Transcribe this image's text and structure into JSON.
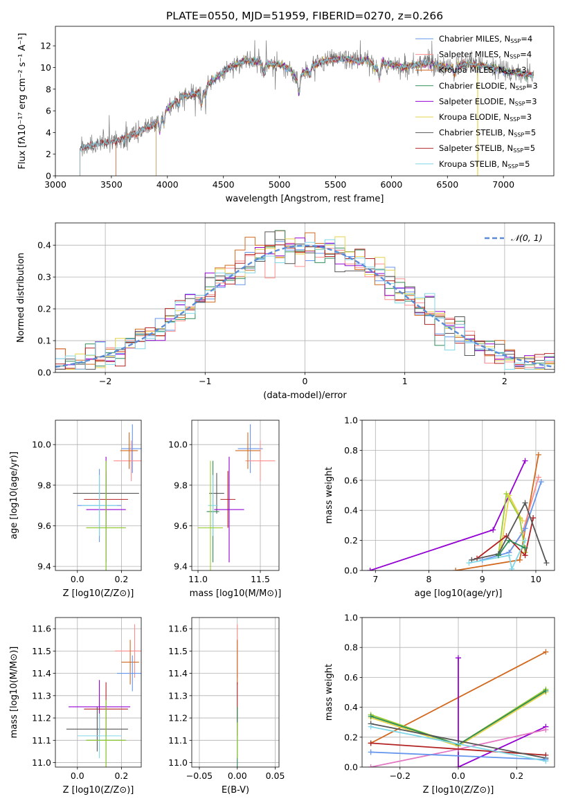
{
  "colors": {
    "chabrier_miles": "#6495ed",
    "salpeter_miles": "#ff8c8c",
    "kroupa_miles": "#d2691e",
    "chabrier_elodie": "#2e8b57",
    "salpeter_elodie": "#9400d3",
    "kroupa_elodie": "#e6d44a",
    "chabrier_stelib": "#555555",
    "salpeter_stelib": "#b22222",
    "kroupa_stelib": "#7fd6e6",
    "gaussian": "#5b8bd6",
    "extra_pink": "#e377c2",
    "extra_lime": "#9acd32"
  },
  "chart_data": [
    {
      "type": "line",
      "title": "PLATE=0550, MJD=51959, FIBERID=0270, z=0.266",
      "xlabel": "wavelength [Angstrom, rest frame]",
      "ylabel": "Flux [fλ10⁻¹⁷ erg cm⁻² s⁻¹ A⁻¹]",
      "xlim": [
        3000,
        7450
      ],
      "ylim": [
        0,
        13.8
      ],
      "xticks": [
        3000,
        3500,
        4000,
        4500,
        5000,
        5500,
        6000,
        6500,
        7000
      ],
      "yticks": [
        0,
        2,
        4,
        6,
        8,
        10,
        12
      ],
      "grid": false,
      "legend_position": "top-right",
      "series": [
        {
          "name": "Chabrier MILES, N_SSP=4",
          "color_key": "chabrier_miles",
          "start": 3540
        },
        {
          "name": "Salpeter MILES, N_SSP=4",
          "color_key": "salpeter_miles",
          "start": 3540
        },
        {
          "name": "Kroupa MILES, N_SSP=3",
          "color_key": "kroupa_miles",
          "start": 3540
        },
        {
          "name": "Chabrier ELODIE, N_SSP=3",
          "color_key": "chabrier_elodie",
          "start": 3900
        },
        {
          "name": "Salpeter ELODIE, N_SSP=3",
          "color_key": "salpeter_elodie",
          "start": 3900
        },
        {
          "name": "Kroupa ELODIE, N_SSP=3",
          "color_key": "kroupa_elodie",
          "start": 3900
        },
        {
          "name": "Chabrier STELIB, N_SSP=5",
          "color_key": "chabrier_stelib",
          "start": 3220
        },
        {
          "name": "Salpeter STELIB, N_SSP=5",
          "color_key": "salpeter_stelib",
          "start": 3220
        },
        {
          "name": "Kroupa STELIB, N_SSP=5",
          "color_key": "kroupa_stelib",
          "start": 3220
        }
      ],
      "continuum": {
        "x": [
          3220,
          3300,
          3400,
          3500,
          3600,
          3700,
          3800,
          3900,
          4000,
          4100,
          4200,
          4300,
          4400,
          4500,
          4600,
          4700,
          4800,
          4900,
          5000,
          5100,
          5150,
          5200,
          5300,
          5400,
          5500,
          5600,
          5700,
          5800,
          5850,
          5900,
          6000,
          6100,
          6200,
          6300,
          6400,
          6500,
          6600,
          6700,
          6800,
          6900,
          7000,
          7100,
          7200,
          7270
        ],
        "y": [
          2.5,
          2.8,
          3.0,
          3.1,
          3.4,
          3.9,
          4.4,
          4.9,
          6.2,
          7.2,
          7.4,
          7.8,
          8.8,
          9.6,
          10.2,
          10.7,
          10.5,
          10.3,
          10.3,
          9.8,
          8.8,
          9.4,
          10.2,
          10.6,
          10.8,
          10.8,
          10.6,
          10.7,
          9.9,
          10.4,
          10.3,
          10.0,
          10.2,
          10.4,
          10.3,
          10.0,
          10.2,
          10.3,
          10.2,
          10.0,
          9.7,
          9.5,
          9.4,
          9.3
        ]
      }
    },
    {
      "type": "histogram",
      "xlabel": "(data-model)/error",
      "ylabel": "Normed distribution",
      "xlim": [
        -2.5,
        2.5
      ],
      "ylim": [
        0,
        0.47
      ],
      "xticks": [
        -2,
        -1,
        0,
        1,
        2
      ],
      "yticks": [
        0.0,
        0.1,
        0.2,
        0.3,
        0.4
      ],
      "grid": true,
      "legend": "𝒩(0, 1)",
      "legend_position": "top-right",
      "bin_width": 0.1
    },
    {
      "type": "scatter",
      "xlabel": "Z [log10(Z/Z⊙)]",
      "ylabel": "age  [log10(age/yr)]",
      "xlim": [
        -0.1,
        0.29
      ],
      "ylim": [
        9.38,
        10.12
      ],
      "xticks": [
        0.0,
        0.2
      ],
      "yticks": [
        9.4,
        9.6,
        9.8,
        10.0
      ],
      "grid": true,
      "points": [
        {
          "color_key": "chabrier_miles",
          "x": 0.25,
          "xerr": 0.05,
          "y": 9.98,
          "yerr": 0.12
        },
        {
          "color_key": "salpeter_miles",
          "x": 0.245,
          "xerr": 0.08,
          "y": 9.92,
          "yerr": 0.1
        },
        {
          "color_key": "kroupa_miles",
          "x": 0.235,
          "xerr": 0.04,
          "y": 9.97,
          "yerr": 0.09
        },
        {
          "color_key": "chabrier_stelib",
          "x": 0.13,
          "xerr": 0.15,
          "y": 9.76,
          "yerr": 0.1
        },
        {
          "color_key": "salpeter_stelib",
          "x": 0.13,
          "xerr": 0.1,
          "y": 9.73,
          "yerr": 0.14
        },
        {
          "color_key": "salpeter_elodie",
          "x": 0.13,
          "xerr": 0.09,
          "y": 9.68,
          "yerr": 0.26
        },
        {
          "color_key": "chabrier_miles",
          "x": 0.1,
          "xerr": 0.1,
          "y": 9.7,
          "yerr": 0.18
        },
        {
          "color_key": "kroupa_stelib",
          "x": 0.1,
          "xerr": 0.08,
          "y": 9.7,
          "yerr": 0.15
        },
        {
          "color_key": "chabrier_elodie",
          "x": 0.13,
          "xerr": 0.09,
          "y": 9.59,
          "yerr": 0.33
        },
        {
          "color_key": "extra_lime",
          "x": 0.13,
          "xerr": 0.09,
          "y": 9.59,
          "yerr": 0.33
        }
      ]
    },
    {
      "type": "scatter",
      "xlabel": "mass [log10(M/M⊙)]",
      "xlim": [
        10.95,
        11.65
      ],
      "ylim": [
        9.38,
        10.12
      ],
      "xticks": [
        11.0,
        11.5
      ],
      "yticks": [
        9.4,
        9.6,
        9.8,
        10.0
      ],
      "grid": true,
      "points": [
        {
          "color_key": "chabrier_miles",
          "x": 11.42,
          "xerr": 0.1,
          "y": 9.98,
          "yerr": 0.12
        },
        {
          "color_key": "salpeter_miles",
          "x": 11.5,
          "xerr": 0.12,
          "y": 9.92,
          "yerr": 0.1
        },
        {
          "color_key": "kroupa_miles",
          "x": 11.4,
          "xerr": 0.1,
          "y": 9.97,
          "yerr": 0.09
        },
        {
          "color_key": "chabrier_stelib",
          "x": 11.15,
          "xerr": 0.06,
          "y": 9.76,
          "yerr": 0.1
        },
        {
          "color_key": "salpeter_stelib",
          "x": 11.24,
          "xerr": 0.06,
          "y": 9.73,
          "yerr": 0.14
        },
        {
          "color_key": "salpeter_elodie",
          "x": 11.25,
          "xerr": 0.12,
          "y": 9.68,
          "yerr": 0.26
        },
        {
          "color_key": "chabrier_elodie",
          "x": 11.12,
          "xerr": 0.05,
          "y": 9.67,
          "yerr": 0.25
        },
        {
          "color_key": "kroupa_stelib",
          "x": 11.12,
          "xerr": 0.04,
          "y": 9.7,
          "yerr": 0.15
        },
        {
          "color_key": "extra_lime",
          "x": 11.1,
          "xerr": 0.1,
          "y": 9.59,
          "yerr": 0.33
        }
      ]
    },
    {
      "type": "line",
      "xlabel": "age  [log10(age/yr)]",
      "ylabel": "mass weight",
      "xlim": [
        6.75,
        10.35
      ],
      "ylim": [
        0,
        1.0
      ],
      "xticks": [
        7,
        8,
        9,
        10
      ],
      "yticks": [
        0.0,
        0.2,
        0.4,
        0.6,
        0.8,
        1.0
      ],
      "grid": true,
      "series": [
        {
          "color_key": "salpeter_elodie",
          "x": [
            6.9,
            9.2,
            9.8
          ],
          "y": [
            0.0,
            0.27,
            0.73
          ]
        },
        {
          "color_key": "kroupa_miles",
          "x": [
            8.5,
            9.7,
            10.05
          ],
          "y": [
            0.0,
            0.07,
            0.77
          ]
        },
        {
          "color_key": "salpeter_miles",
          "x": [
            9.5,
            9.75,
            10.05
          ],
          "y": [
            0.12,
            0.25,
            0.62
          ]
        },
        {
          "color_key": "chabrier_miles",
          "x": [
            9.0,
            9.5,
            9.8,
            10.1
          ],
          "y": [
            0.07,
            0.12,
            0.28,
            0.59
          ]
        },
        {
          "color_key": "extra_lime",
          "x": [
            9.3,
            9.45,
            9.7,
            9.8
          ],
          "y": [
            0.1,
            0.51,
            0.35,
            0.12
          ]
        },
        {
          "color_key": "kroupa_elodie",
          "x": [
            9.35,
            9.5,
            9.75
          ],
          "y": [
            0.15,
            0.5,
            0.33
          ]
        },
        {
          "color_key": "salpeter_stelib",
          "x": [
            8.9,
            9.45,
            9.8,
            9.95
          ],
          "y": [
            0.08,
            0.23,
            0.1,
            0.35
          ]
        },
        {
          "color_key": "chabrier_stelib",
          "x": [
            8.8,
            9.3,
            9.8,
            10.2
          ],
          "y": [
            0.07,
            0.11,
            0.45,
            0.05
          ]
        },
        {
          "color_key": "kroupa_stelib",
          "x": [
            8.75,
            9.5,
            9.55,
            9.8
          ],
          "y": [
            0.05,
            0.1,
            0.01,
            0.2
          ]
        },
        {
          "color_key": "chabrier_elodie",
          "x": [
            9.3,
            9.5,
            9.8
          ],
          "y": [
            0.1,
            0.2,
            0.15
          ]
        }
      ]
    },
    {
      "type": "scatter",
      "xlabel": "Z [log10(Z/Z⊙)]",
      "ylabel": "mass [log10(M/M⊙)]",
      "xlim": [
        -0.1,
        0.29
      ],
      "ylim": [
        10.98,
        11.65
      ],
      "xticks": [
        0.0,
        0.2
      ],
      "yticks": [
        11.0,
        11.1,
        11.2,
        11.3,
        11.4,
        11.5,
        11.6
      ],
      "grid": true,
      "points": [
        {
          "color_key": "salpeter_miles",
          "x": 0.26,
          "xerr": 0.09,
          "y": 11.5,
          "yerr": 0.12
        },
        {
          "color_key": "kroupa_miles",
          "x": 0.24,
          "xerr": 0.04,
          "y": 11.45,
          "yerr": 0.1
        },
        {
          "color_key": "chabrier_miles",
          "x": 0.25,
          "xerr": 0.07,
          "y": 11.4,
          "yerr": 0.08
        },
        {
          "color_key": "salpeter_elodie",
          "x": 0.1,
          "xerr": 0.14,
          "y": 11.25,
          "yerr": 0.12
        },
        {
          "color_key": "salpeter_stelib",
          "x": 0.13,
          "xerr": 0.1,
          "y": 11.24,
          "yerr": 0.12
        },
        {
          "color_key": "chabrier_stelib",
          "x": 0.09,
          "xerr": 0.14,
          "y": 11.15,
          "yerr": 0.1
        },
        {
          "color_key": "kroupa_stelib",
          "x": 0.1,
          "xerr": 0.1,
          "y": 11.12,
          "yerr": 0.1
        },
        {
          "color_key": "chabrier_elodie",
          "x": 0.13,
          "xerr": 0.09,
          "y": 11.1,
          "yerr": 0.18
        },
        {
          "color_key": "extra_lime",
          "x": 0.13,
          "xerr": 0.09,
          "y": 11.1,
          "yerr": 0.18
        }
      ]
    },
    {
      "type": "scatter",
      "xlabel": "E(B-V)",
      "xlim": [
        -0.06,
        0.055
      ],
      "ylim": [
        10.98,
        11.65
      ],
      "xticks": [
        -0.05,
        0.0,
        0.05
      ],
      "yticks": [
        11.0,
        11.1,
        11.2,
        11.3,
        11.4,
        11.5,
        11.6
      ],
      "grid": true,
      "points": [
        {
          "color_key": "salpeter_miles",
          "x": 0.0,
          "xerr": 0.0,
          "y": 11.5,
          "yerr": 0.12
        },
        {
          "color_key": "kroupa_miles",
          "x": 0.0,
          "xerr": 0.0,
          "y": 11.45,
          "yerr": 0.1
        },
        {
          "color_key": "salpeter_stelib",
          "x": 0.0,
          "xerr": 0.0,
          "y": 11.24,
          "yerr": 0.12
        },
        {
          "color_key": "chabrier_elodie",
          "x": 0.0,
          "xerr": 0.0,
          "y": 11.1,
          "yerr": 0.15
        },
        {
          "color_key": "extra_lime",
          "x": 0.0,
          "xerr": 0.0,
          "y": 11.1,
          "yerr": 0.08
        }
      ]
    },
    {
      "type": "line",
      "xlabel": "Z [log10(Z/Z⊙)]",
      "ylabel": "mass weight",
      "xlim": [
        -0.33,
        0.33
      ],
      "ylim": [
        0,
        1.0
      ],
      "xticks": [
        -0.2,
        0.0,
        0.2
      ],
      "yticks": [
        0.0,
        0.2,
        0.4,
        0.6,
        0.8,
        1.0
      ],
      "grid": true,
      "series": [
        {
          "color_key": "kroupa_miles",
          "x": [
            -0.3,
            0.3
          ],
          "y": [
            0.16,
            0.77
          ]
        },
        {
          "color_key": "salpeter_elodie",
          "x": [
            0.0,
            0.0,
            0.3
          ],
          "y": [
            0.73,
            0.0,
            0.27
          ]
        },
        {
          "color_key": "extra_lime",
          "x": [
            -0.3,
            0.0,
            0.3
          ],
          "y": [
            0.35,
            0.15,
            0.52
          ]
        },
        {
          "color_key": "kroupa_elodie",
          "x": [
            -0.3,
            0.0,
            0.3
          ],
          "y": [
            0.33,
            0.14,
            0.5
          ]
        },
        {
          "color_key": "chabrier_elodie",
          "x": [
            -0.3,
            0.0,
            0.3
          ],
          "y": [
            0.34,
            0.15,
            0.51
          ]
        },
        {
          "color_key": "extra_pink",
          "x": [
            -0.3,
            0.0,
            0.3
          ],
          "y": [
            0.0,
            0.12,
            0.25
          ]
        },
        {
          "color_key": "salpeter_stelib",
          "x": [
            -0.3,
            0.3
          ],
          "y": [
            0.16,
            0.08
          ]
        },
        {
          "color_key": "chabrier_stelib",
          "x": [
            -0.3,
            0.3
          ],
          "y": [
            0.29,
            0.06
          ]
        },
        {
          "color_key": "chabrier_miles",
          "x": [
            -0.3,
            0.3
          ],
          "y": [
            0.1,
            0.05
          ]
        },
        {
          "color_key": "kroupa_stelib",
          "x": [
            -0.3,
            0.3
          ],
          "y": [
            0.27,
            0.04
          ]
        }
      ]
    }
  ]
}
